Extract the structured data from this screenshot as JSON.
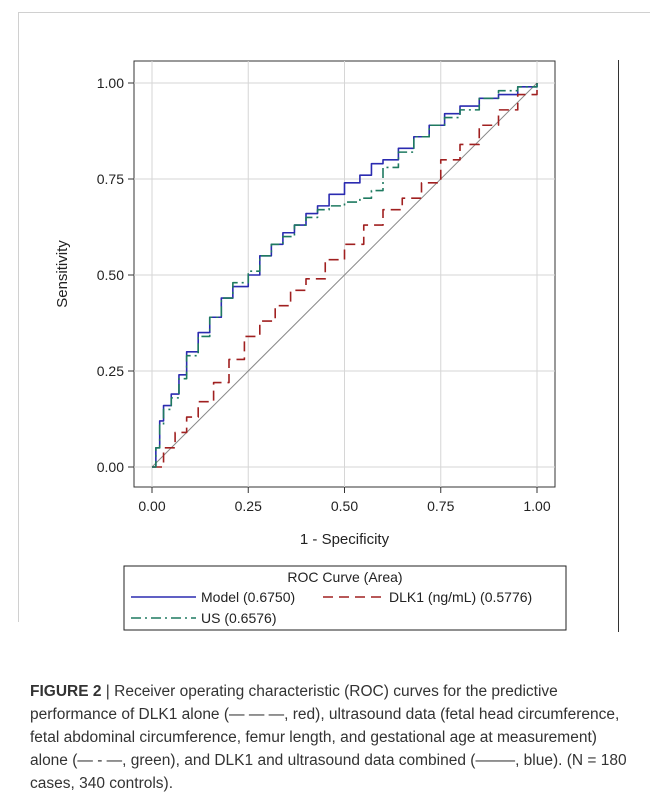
{
  "figure": {
    "label": "FIGURE 2",
    "separator": " | ",
    "caption": "Receiver operating characteristic (ROC) curves for the predictive performance of DLK1 alone (— — —, red), ultrasound data (fetal head circumference, fetal abdominal circumference, femur length, and gestational age at measurement) alone (— - —, green), and DLK1 and ultrasound data combined (——–, blue). (N = 180 cases, 340 controls)."
  },
  "chart_data": {
    "type": "line",
    "title": "",
    "xlabel": "1 - Specificity",
    "ylabel": "Sensitivity",
    "xlim": [
      0,
      1
    ],
    "ylim": [
      0,
      1
    ],
    "xticks": [
      "0.00",
      "0.25",
      "0.50",
      "0.75",
      "1.00"
    ],
    "yticks": [
      "0.00",
      "0.25",
      "0.50",
      "0.75",
      "1.00"
    ],
    "grid": true,
    "legend": {
      "title": "ROC Curve (Area)",
      "placement": "bottom",
      "entries": [
        "Model (0.6750)",
        "DLK1 (ng/mL) (0.5776)",
        "US (0.6576)"
      ]
    },
    "reference_line": {
      "x": [
        0,
        1
      ],
      "y": [
        0,
        1
      ],
      "color": "#888888"
    },
    "series": [
      {
        "name": "Model",
        "color": "#2b2bb0",
        "dash": "solid",
        "x": [
          0,
          0.01,
          0.02,
          0.03,
          0.05,
          0.07,
          0.09,
          0.12,
          0.15,
          0.18,
          0.21,
          0.25,
          0.28,
          0.31,
          0.34,
          0.37,
          0.4,
          0.43,
          0.46,
          0.5,
          0.54,
          0.57,
          0.6,
          0.64,
          0.68,
          0.72,
          0.76,
          0.8,
          0.85,
          0.9,
          0.95,
          1.0
        ],
        "y": [
          0,
          0.05,
          0.12,
          0.16,
          0.19,
          0.24,
          0.3,
          0.35,
          0.39,
          0.44,
          0.47,
          0.5,
          0.55,
          0.58,
          0.61,
          0.63,
          0.66,
          0.68,
          0.71,
          0.74,
          0.76,
          0.79,
          0.8,
          0.83,
          0.86,
          0.89,
          0.92,
          0.94,
          0.96,
          0.97,
          0.99,
          1.0
        ]
      },
      {
        "name": "DLK1 (ng/mL)",
        "color": "#a02020",
        "dash": "long",
        "x": [
          0,
          0.03,
          0.06,
          0.09,
          0.12,
          0.16,
          0.2,
          0.24,
          0.28,
          0.32,
          0.36,
          0.4,
          0.45,
          0.5,
          0.55,
          0.6,
          0.65,
          0.7,
          0.75,
          0.8,
          0.85,
          0.9,
          0.95,
          1.0
        ],
        "y": [
          0,
          0.05,
          0.09,
          0.13,
          0.17,
          0.22,
          0.28,
          0.34,
          0.38,
          0.42,
          0.46,
          0.49,
          0.54,
          0.58,
          0.63,
          0.67,
          0.7,
          0.74,
          0.8,
          0.84,
          0.89,
          0.93,
          0.97,
          1.0
        ]
      },
      {
        "name": "US",
        "color": "#1f7a60",
        "dash": "dashdot",
        "x": [
          0,
          0.01,
          0.02,
          0.03,
          0.05,
          0.07,
          0.09,
          0.12,
          0.15,
          0.18,
          0.21,
          0.25,
          0.28,
          0.31,
          0.34,
          0.37,
          0.4,
          0.43,
          0.46,
          0.5,
          0.54,
          0.57,
          0.6,
          0.64,
          0.68,
          0.72,
          0.76,
          0.8,
          0.85,
          0.9,
          0.95,
          1.0
        ],
        "y": [
          0,
          0.05,
          0.11,
          0.15,
          0.18,
          0.23,
          0.29,
          0.34,
          0.39,
          0.44,
          0.48,
          0.51,
          0.55,
          0.58,
          0.6,
          0.63,
          0.65,
          0.67,
          0.68,
          0.69,
          0.7,
          0.72,
          0.78,
          0.82,
          0.86,
          0.89,
          0.91,
          0.93,
          0.96,
          0.98,
          0.99,
          1.0
        ]
      }
    ]
  }
}
